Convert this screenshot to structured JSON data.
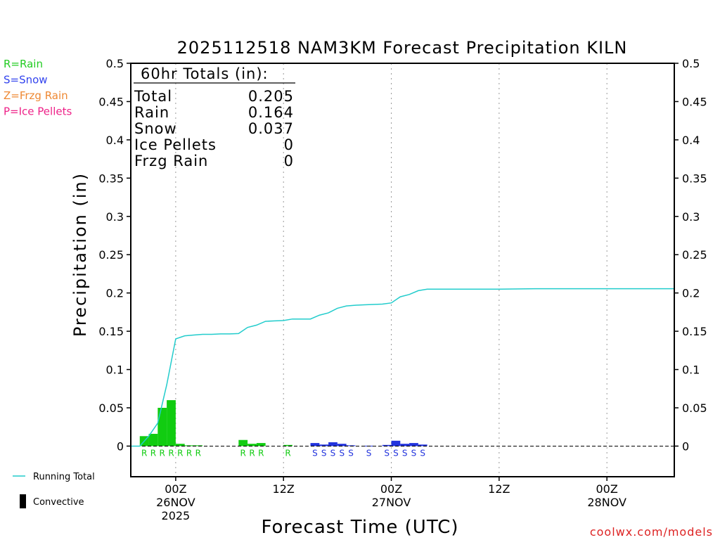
{
  "chart_data": {
    "type": "bar",
    "title": "2025112518 NAM3KM Forecast Precipitation KILN",
    "xlabel": "Forecast Time (UTC)",
    "ylabel": "Precipitation (in)",
    "ylim": [
      -0.04,
      0.5
    ],
    "yticks": [
      {
        "v": 0.5,
        "label": "0.5"
      },
      {
        "v": 0.45,
        "label": "0.45"
      },
      {
        "v": 0.4,
        "label": "0.4"
      },
      {
        "v": 0.35,
        "label": "0.35"
      },
      {
        "v": 0.3,
        "label": "0.3"
      },
      {
        "v": 0.25,
        "label": "0.25"
      },
      {
        "v": 0.2,
        "label": "0.2"
      },
      {
        "v": 0.15,
        "label": "0.15"
      },
      {
        "v": 0.1,
        "label": "0.1"
      },
      {
        "v": 0.05,
        "label": "0.05"
      },
      {
        "v": 0,
        "label": "0"
      }
    ],
    "x_range_hours": [
      -5,
      55.5
    ],
    "xticks": [
      {
        "h": 0,
        "line1": "00Z",
        "line2": "26NOV",
        "line3": "2025"
      },
      {
        "h": 12,
        "line1": "12Z",
        "line2": "",
        "line3": ""
      },
      {
        "h": 24,
        "line1": "00Z",
        "line2": "27NOV",
        "line3": ""
      },
      {
        "h": 36,
        "line1": "12Z",
        "line2": "",
        "line3": ""
      },
      {
        "h": 48,
        "line1": "00Z",
        "line2": "28NOV",
        "line3": ""
      }
    ],
    "bar_width_hours": 1,
    "bars": [
      {
        "h": -3,
        "value": 0.013,
        "type": "R"
      },
      {
        "h": -2,
        "value": 0.016,
        "type": "R"
      },
      {
        "h": -1,
        "value": 0.05,
        "type": "R"
      },
      {
        "h": 0,
        "value": 0.06,
        "type": "R"
      },
      {
        "h": 1,
        "value": 0.003,
        "type": "R"
      },
      {
        "h": 2,
        "value": 0.001,
        "type": "R"
      },
      {
        "h": 3,
        "value": 0.001,
        "type": "R"
      },
      {
        "h": 8,
        "value": 0.008,
        "type": "R"
      },
      {
        "h": 9,
        "value": 0.003,
        "type": "R"
      },
      {
        "h": 10,
        "value": 0.004,
        "type": "R"
      },
      {
        "h": 13,
        "value": 0.0015,
        "type": "R"
      },
      {
        "h": 16,
        "value": 0.004,
        "type": "S"
      },
      {
        "h": 17,
        "value": 0.002,
        "type": "S"
      },
      {
        "h": 18,
        "value": 0.005,
        "type": "S"
      },
      {
        "h": 19,
        "value": 0.003,
        "type": "S"
      },
      {
        "h": 20,
        "value": 0.001,
        "type": "S"
      },
      {
        "h": 22,
        "value": 0.0005,
        "type": "S"
      },
      {
        "h": 24,
        "value": 0.0015,
        "type": "S"
      },
      {
        "h": 25,
        "value": 0.007,
        "type": "S"
      },
      {
        "h": 26,
        "value": 0.003,
        "type": "S"
      },
      {
        "h": 27,
        "value": 0.004,
        "type": "S"
      },
      {
        "h": 28,
        "value": 0.002,
        "type": "S"
      }
    ],
    "running_total": [
      {
        "h": -5,
        "v": 0.0
      },
      {
        "h": -4,
        "v": 0.0
      },
      {
        "h": -3,
        "v": 0.013
      },
      {
        "h": -2,
        "v": 0.03
      },
      {
        "h": -1,
        "v": 0.08
      },
      {
        "h": 0,
        "v": 0.14
      },
      {
        "h": 1,
        "v": 0.144
      },
      {
        "h": 2,
        "v": 0.145
      },
      {
        "h": 3,
        "v": 0.146
      },
      {
        "h": 4,
        "v": 0.146
      },
      {
        "h": 5,
        "v": 0.1465
      },
      {
        "h": 6,
        "v": 0.1465
      },
      {
        "h": 7,
        "v": 0.147
      },
      {
        "h": 8,
        "v": 0.155
      },
      {
        "h": 9,
        "v": 0.158
      },
      {
        "h": 10,
        "v": 0.163
      },
      {
        "h": 11,
        "v": 0.1635
      },
      {
        "h": 12,
        "v": 0.164
      },
      {
        "h": 13,
        "v": 0.166
      },
      {
        "h": 14,
        "v": 0.166
      },
      {
        "h": 15,
        "v": 0.166
      },
      {
        "h": 16,
        "v": 0.171
      },
      {
        "h": 17,
        "v": 0.174
      },
      {
        "h": 18,
        "v": 0.18
      },
      {
        "h": 19,
        "v": 0.183
      },
      {
        "h": 20,
        "v": 0.184
      },
      {
        "h": 21,
        "v": 0.1845
      },
      {
        "h": 22,
        "v": 0.185
      },
      {
        "h": 23,
        "v": 0.1855
      },
      {
        "h": 24,
        "v": 0.187
      },
      {
        "h": 25,
        "v": 0.195
      },
      {
        "h": 26,
        "v": 0.198
      },
      {
        "h": 27,
        "v": 0.203
      },
      {
        "h": 28,
        "v": 0.205
      },
      {
        "h": 36,
        "v": 0.205
      },
      {
        "h": 40,
        "v": 0.2055
      },
      {
        "h": 55.5,
        "v": 0.2055
      }
    ],
    "type_letters": [
      {
        "h": -3,
        "letter": "R"
      },
      {
        "h": -2,
        "letter": "R"
      },
      {
        "h": -1,
        "letter": "R"
      },
      {
        "h": 0,
        "letter": "R"
      },
      {
        "h": 1,
        "letter": "R"
      },
      {
        "h": 2,
        "letter": "R"
      },
      {
        "h": 3,
        "letter": "R"
      },
      {
        "h": 8,
        "letter": "R"
      },
      {
        "h": 9,
        "letter": "R"
      },
      {
        "h": 10,
        "letter": "R"
      },
      {
        "h": 13,
        "letter": "R"
      },
      {
        "h": 16,
        "letter": "S"
      },
      {
        "h": 17,
        "letter": "S"
      },
      {
        "h": 18,
        "letter": "S"
      },
      {
        "h": 19,
        "letter": "S"
      },
      {
        "h": 20,
        "letter": "S"
      },
      {
        "h": 22,
        "letter": "S"
      },
      {
        "h": 24,
        "letter": "S"
      },
      {
        "h": 25,
        "letter": "S"
      },
      {
        "h": 26,
        "letter": "S"
      },
      {
        "h": 27,
        "letter": "S"
      },
      {
        "h": 28,
        "letter": "S"
      }
    ],
    "totals_box": {
      "heading": "60hr Totals (in):",
      "rows": [
        {
          "label": "Total",
          "value": "0.205"
        },
        {
          "label": "Rain",
          "value": "0.164"
        },
        {
          "label": "Snow",
          "value": "0.037"
        },
        {
          "label": "Ice Pellets",
          "value": "0"
        },
        {
          "label": "Frzg Rain",
          "value": "0"
        }
      ]
    },
    "type_legend": [
      {
        "text": "R=Rain",
        "color": "#22cc22"
      },
      {
        "text": "S=Snow",
        "color": "#3344ee"
      },
      {
        "text": "Z=Frzg Rain",
        "color": "#ee8833"
      },
      {
        "text": "P=Ice Pellets",
        "color": "#ee2288"
      }
    ],
    "series_legend": [
      {
        "text": "Running Total",
        "color": "#22cccc"
      },
      {
        "text": "Convective",
        "color": "#000000"
      }
    ],
    "colors": {
      "R": "#11cc11",
      "S": "#2233dd",
      "running": "#22cccc"
    }
  },
  "footer": {
    "credit": "coolwx.com/models",
    "credit_color": "#dd2222"
  }
}
